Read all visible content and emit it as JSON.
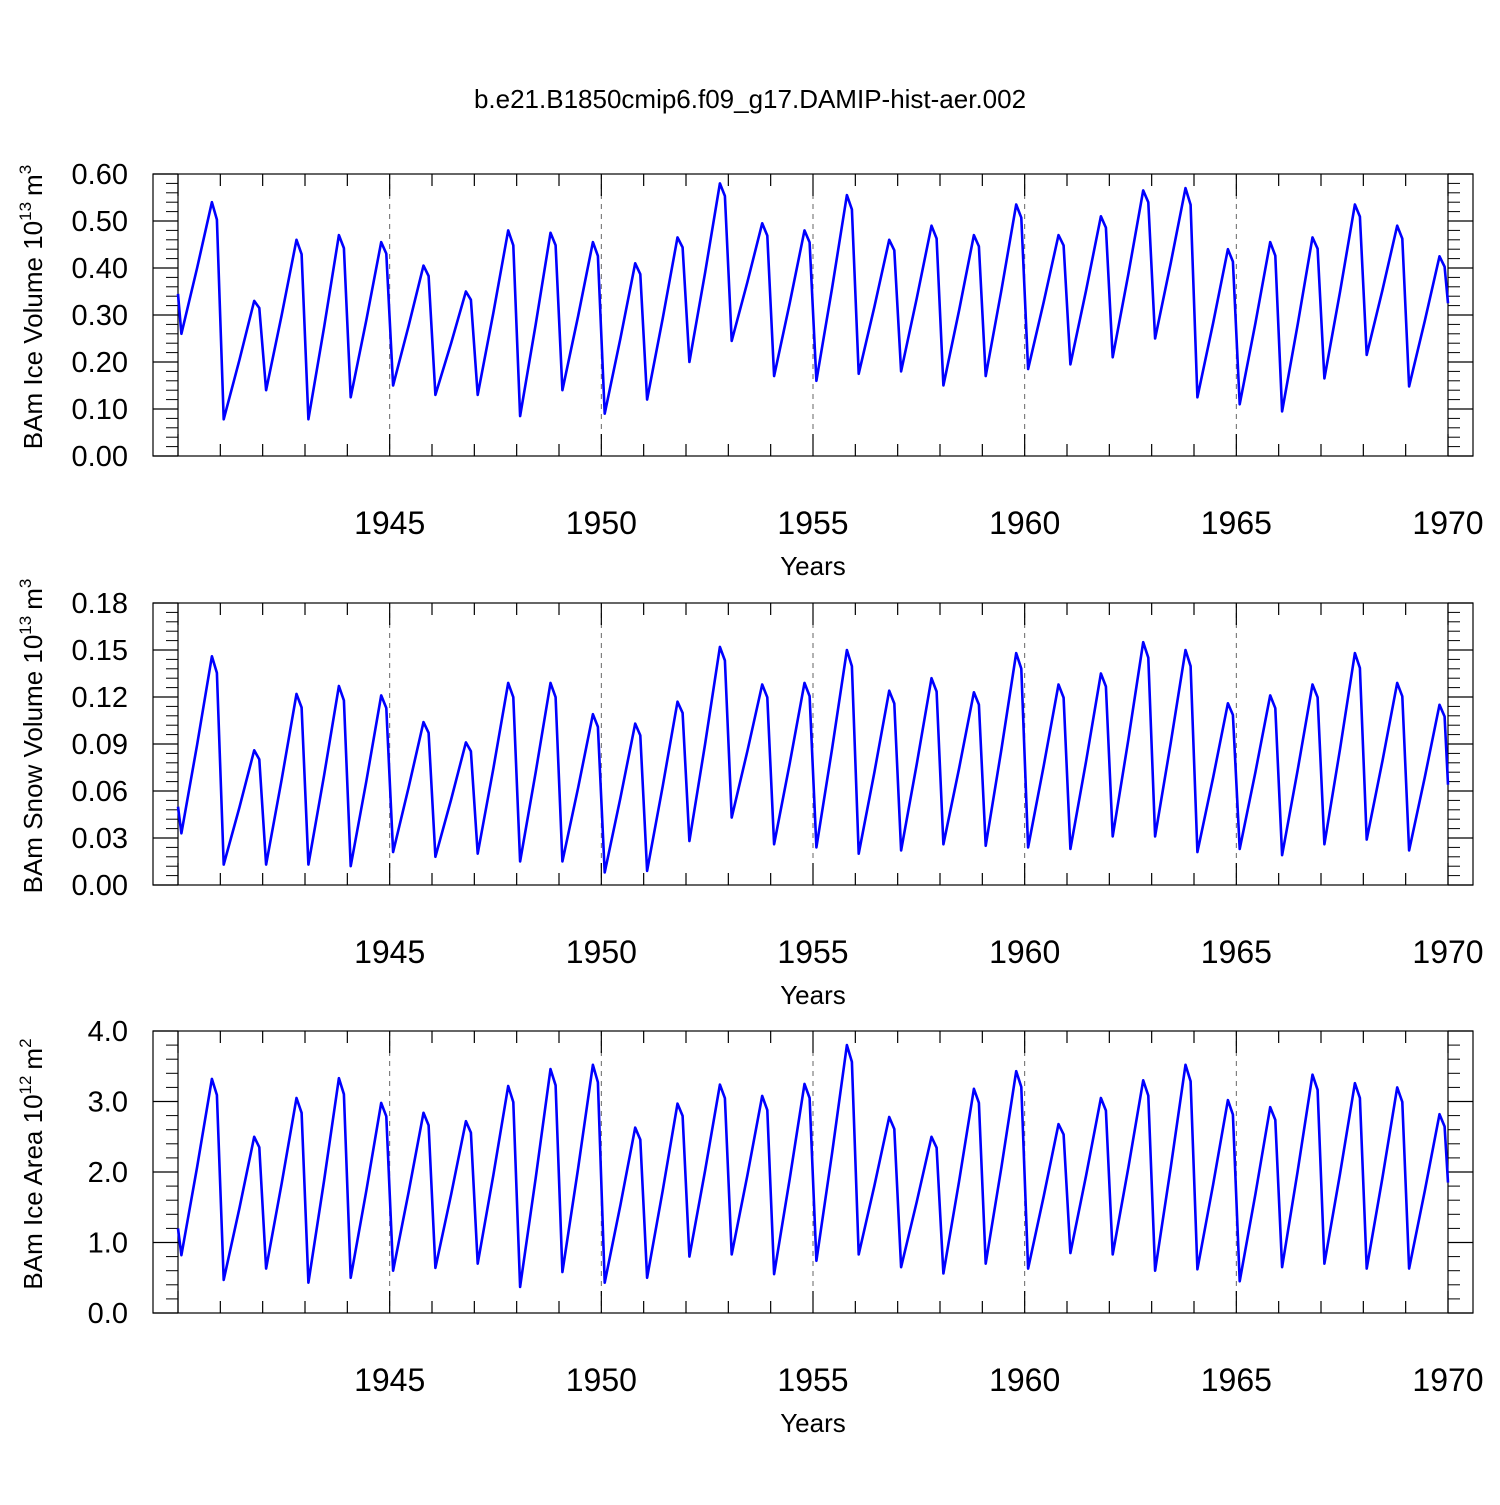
{
  "figure": {
    "title": "b.e21.B1850cmip6.f09_g17.DAMIP-hist-aer.002"
  },
  "chart_data": [
    {
      "type": "line",
      "name": "ice-volume",
      "title": "",
      "xlabel": "Years",
      "ylabel_main": "BAm Ice Volume 10",
      "ylabel_sup": "13",
      "ylabel_unit": "m",
      "ylabel_unit_sup": "3",
      "xlim": [
        1940.0,
        1970.0
      ],
      "ylim": [
        0.0,
        0.6
      ],
      "yticks": [
        0.0,
        0.1,
        0.2,
        0.3,
        0.4,
        0.5,
        0.6
      ],
      "ytick_labels": [
        "0.00",
        "0.10",
        "0.20",
        "0.30",
        "0.40",
        "0.50",
        "0.60"
      ],
      "xticks": [
        1945,
        1950,
        1955,
        1960,
        1965,
        1970
      ],
      "xtick_labels": [
        "1945",
        "1950",
        "1955",
        "1960",
        "1965",
        "1970"
      ],
      "gridlines_x": [
        1945,
        1950,
        1955,
        1960,
        1965
      ],
      "series_color": "#0000ff",
      "series": [
        {
          "name": "BAm Ice Volume",
          "peaks": [
            0.54,
            0.33,
            0.46,
            0.47,
            0.455,
            0.405,
            0.35,
            0.48,
            0.475,
            0.455,
            0.41,
            0.465,
            0.58,
            0.495,
            0.48,
            0.555,
            0.46,
            0.49,
            0.47,
            0.535,
            0.47,
            0.51,
            0.565,
            0.57,
            0.44,
            0.455,
            0.465,
            0.535,
            0.49,
            0.425
          ],
          "troughs": [
            0.26,
            0.078,
            0.14,
            0.078,
            0.125,
            0.15,
            0.13,
            0.13,
            0.085,
            0.14,
            0.09,
            0.12,
            0.2,
            0.245,
            0.17,
            0.16,
            0.175,
            0.18,
            0.15,
            0.17,
            0.185,
            0.195,
            0.21,
            0.25,
            0.125,
            0.11,
            0.095,
            0.165,
            0.215,
            0.148
          ],
          "start_value": 0.345,
          "end_value": 0.325
        }
      ]
    },
    {
      "type": "line",
      "name": "snow-volume",
      "title": "",
      "xlabel": "Years",
      "ylabel_main": "BAm Snow Volume 10",
      "ylabel_sup": "13",
      "ylabel_unit": "m",
      "ylabel_unit_sup": "3",
      "xlim": [
        1940.0,
        1970.0
      ],
      "ylim": [
        0.0,
        0.18
      ],
      "yticks": [
        0.0,
        0.03,
        0.06,
        0.09,
        0.12,
        0.15,
        0.18
      ],
      "ytick_labels": [
        "0.00",
        "0.03",
        "0.06",
        "0.09",
        "0.12",
        "0.15",
        "0.18"
      ],
      "xticks": [
        1945,
        1950,
        1955,
        1960,
        1965,
        1970
      ],
      "xtick_labels": [
        "1945",
        "1950",
        "1955",
        "1960",
        "1965",
        "1970"
      ],
      "gridlines_x": [
        1945,
        1950,
        1955,
        1960,
        1965
      ],
      "series_color": "#0000ff",
      "series": [
        {
          "name": "BAm Snow Volume",
          "peaks": [
            0.146,
            0.086,
            0.122,
            0.127,
            0.121,
            0.104,
            0.091,
            0.129,
            0.129,
            0.109,
            0.103,
            0.117,
            0.152,
            0.128,
            0.129,
            0.15,
            0.124,
            0.132,
            0.123,
            0.148,
            0.128,
            0.135,
            0.155,
            0.15,
            0.116,
            0.121,
            0.128,
            0.148,
            0.129,
            0.115
          ],
          "troughs": [
            0.033,
            0.013,
            0.013,
            0.013,
            0.012,
            0.021,
            0.018,
            0.02,
            0.015,
            0.015,
            0.008,
            0.009,
            0.028,
            0.043,
            0.026,
            0.024,
            0.02,
            0.022,
            0.026,
            0.025,
            0.024,
            0.023,
            0.031,
            0.031,
            0.021,
            0.023,
            0.019,
            0.026,
            0.029,
            0.022
          ],
          "start_value": 0.05,
          "end_value": 0.064
        }
      ]
    },
    {
      "type": "line",
      "name": "ice-area",
      "title": "",
      "xlabel": "Years",
      "ylabel_main": "BAm Ice Area 10",
      "ylabel_sup": "12",
      "ylabel_unit": "m",
      "ylabel_unit_sup": "2",
      "xlim": [
        1940.0,
        1970.0
      ],
      "ylim": [
        0.0,
        4.0
      ],
      "yticks": [
        0.0,
        1.0,
        2.0,
        3.0,
        4.0
      ],
      "ytick_labels": [
        "0.0",
        "1.0",
        "2.0",
        "3.0",
        "4.0"
      ],
      "xticks": [
        1945,
        1950,
        1955,
        1960,
        1965,
        1970
      ],
      "xtick_labels": [
        "1945",
        "1950",
        "1955",
        "1960",
        "1965",
        "1970"
      ],
      "gridlines_x": [
        1945,
        1950,
        1955,
        1960,
        1965
      ],
      "series_color": "#0000ff",
      "series": [
        {
          "name": "BAm Ice Area",
          "peaks": [
            3.32,
            2.5,
            3.05,
            3.33,
            2.98,
            2.84,
            2.72,
            3.22,
            3.46,
            3.52,
            2.63,
            2.97,
            3.24,
            3.08,
            3.25,
            3.8,
            2.78,
            2.5,
            3.18,
            3.43,
            2.68,
            3.05,
            3.3,
            3.52,
            3.02,
            2.92,
            3.38,
            3.26,
            3.2,
            2.82
          ],
          "troughs": [
            0.82,
            0.47,
            0.63,
            0.43,
            0.5,
            0.6,
            0.64,
            0.7,
            0.37,
            0.58,
            0.43,
            0.5,
            0.8,
            0.83,
            0.55,
            0.74,
            0.83,
            0.65,
            0.56,
            0.7,
            0.63,
            0.85,
            0.83,
            0.6,
            0.62,
            0.45,
            0.65,
            0.7,
            0.63,
            0.63
          ],
          "start_value": 1.2,
          "end_value": 1.85
        }
      ]
    }
  ]
}
